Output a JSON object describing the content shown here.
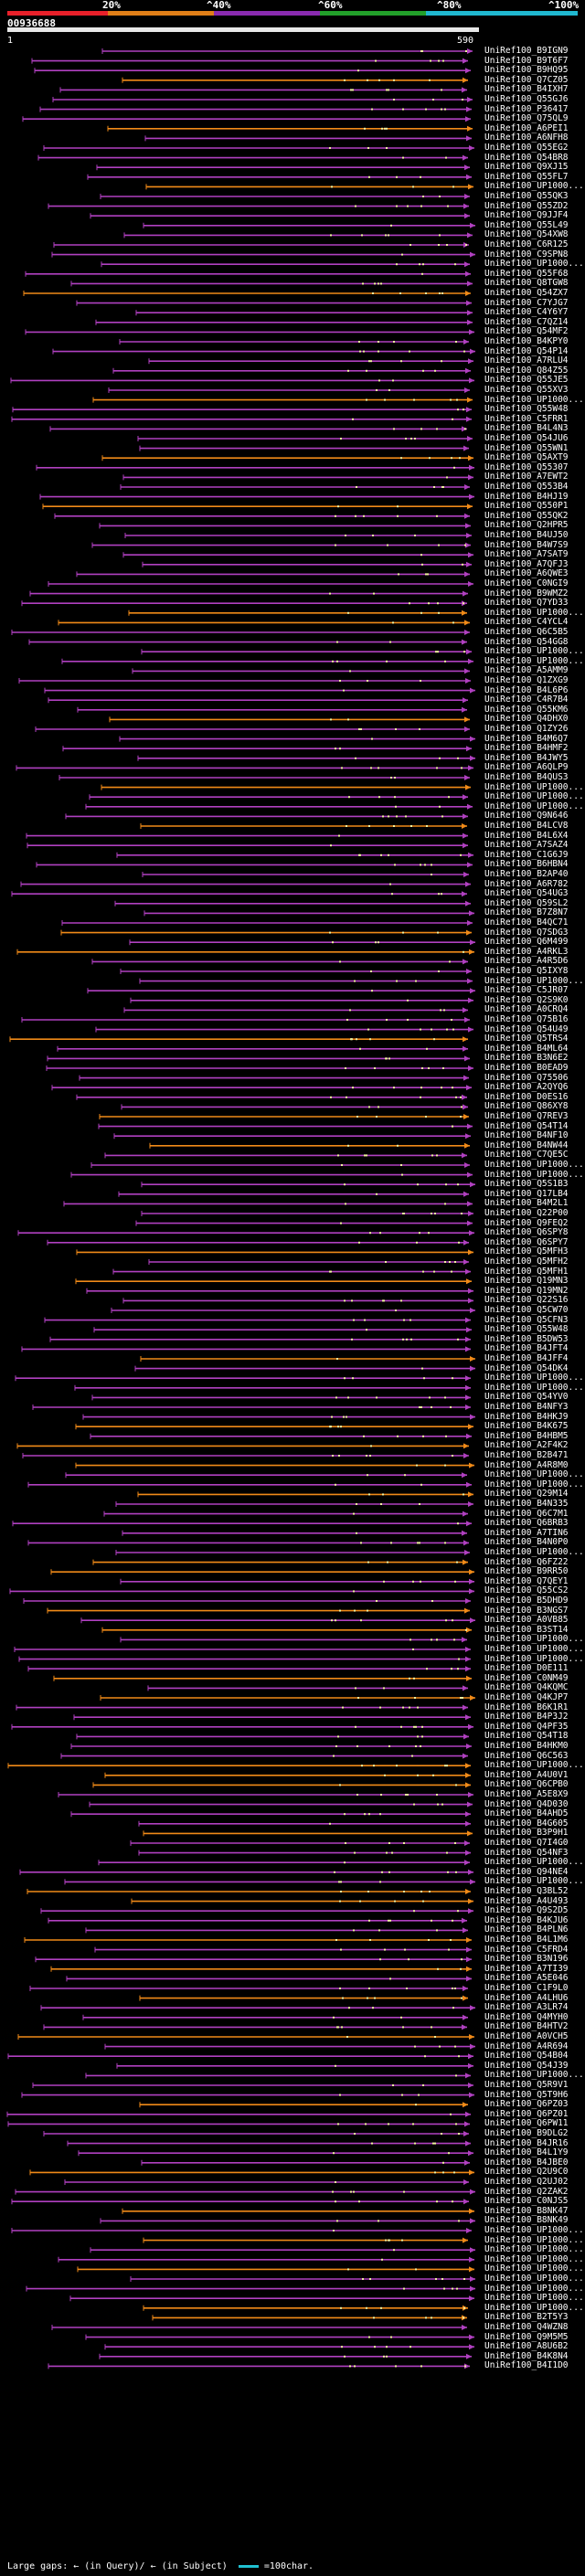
{
  "legend": {
    "labels": [
      "20%",
      "^40%",
      "^60%",
      "^80%",
      "^100%"
    ],
    "colors": [
      "#e8202a",
      "#e07f18",
      "#8a2bb0",
      "#22a02a",
      "#20b8d0"
    ]
  },
  "query": {
    "id": "00936688",
    "start": "1",
    "end": "590"
  },
  "hit_colors": {
    "purple": "#b040c0",
    "orange": "#f08a18",
    "dot": "#f0f0a0"
  },
  "hits": [
    "UniRef100_B9IGN9",
    "UniRef100_B9T6F7",
    "UniRef100_B9HQ95",
    "UniRef100_Q7CZ05",
    "UniRef100_B4IXH7",
    "UniRef100_Q55GJ6",
    "UniRef100_P36417",
    "UniRef100_Q75QL9",
    "UniRef100_A6PEI1",
    "UniRef100_A6NFH8",
    "UniRef100_Q55EG2",
    "UniRef100_Q54BR8",
    "UniRef100_Q9XJ15",
    "UniRef100_Q55FL7",
    "UniRef100_UP1000...",
    "UniRef100_Q55QK3",
    "UniRef100_Q55ZD2",
    "UniRef100_Q9JJF4",
    "UniRef100_Q55L49",
    "UniRef100_Q54XW8",
    "UniRef100_C6R125",
    "UniRef100_C9SPN8",
    "UniRef100_UP1000...",
    "UniRef100_Q55F68",
    "UniRef100_Q8TGW8",
    "UniRef100_Q54ZX7",
    "UniRef100_C7YJG7",
    "UniRef100_C4Y6Y7",
    "UniRef100_C7QZ14",
    "UniRef100_Q54MF2",
    "UniRef100_B4KPY0",
    "UniRef100_Q54P14",
    "UniRef100_A7RLU4",
    "UniRef100_Q84Z55",
    "UniRef100_Q55JE5",
    "UniRef100_Q55XV3",
    "UniRef100_UP1000...",
    "UniRef100_Q55W48",
    "UniRef100_C5FRR1",
    "UniRef100_B4L4N3",
    "UniRef100_Q54JU6",
    "UniRef100_Q55WN1",
    "UniRef100_Q5AXT9",
    "UniRef100_Q55307",
    "UniRef100_A7EWT2",
    "UniRef100_Q553B4",
    "UniRef100_B4HJ19",
    "UniRef100_Q550P1",
    "UniRef100_Q55QK2",
    "UniRef100_Q2HPR5",
    "UniRef100_B4UJ50",
    "UniRef100_B4W7S9",
    "UniRef100_A7SAT9",
    "UniRef100_A7QFJ3",
    "UniRef100_A6QWE3",
    "UniRef100_C0NGI9",
    "UniRef100_B9WMZ2",
    "UniRef100_Q7YD33",
    "UniRef100_UP1000...",
    "UniRef100_C4YCL4",
    "UniRef100_Q6C5B5",
    "UniRef100_Q54GG8",
    "UniRef100_UP1000...",
    "UniRef100_UP1000...",
    "UniRef100_A5AMM9",
    "UniRef100_Q1ZXG9",
    "UniRef100_B4L6P6",
    "UniRef100_C4R7B4",
    "UniRef100_Q55KM6",
    "UniRef100_Q4DHX0",
    "UniRef100_Q1ZY26",
    "UniRef100_B4M6Q7",
    "UniRef100_B4HMF2",
    "UniRef100_B4JWY5",
    "UniRef100_A6QLP9",
    "UniRef100_B4QUS3",
    "UniRef100_UP1000...",
    "UniRef100_UP1000...",
    "UniRef100_UP1000...",
    "UniRef100_Q9N646",
    "UniRef100_B4LCV8",
    "UniRef100_B4L6X4",
    "UniRef100_A7SAZ4",
    "UniRef100_C1G6J9",
    "UniRef100_B6HBN4",
    "UniRef100_B2AP40",
    "UniRef100_A6R782",
    "UniRef100_Q54UG3",
    "UniRef100_Q59SL2",
    "UniRef100_B7Z8N7",
    "UniRef100_B4QC71",
    "UniRef100_Q7SDG3",
    "UniRef100_Q6M499",
    "UniRef100_A4RKL3",
    "UniRef100_A4R5D6",
    "UniRef100_Q5IXY8",
    "UniRef100_UP1000...",
    "UniRef100_C5JR07",
    "UniRef100_Q2S9K0",
    "UniRef100_A0CRQ4",
    "UniRef100_Q75B16",
    "UniRef100_Q54U49",
    "UniRef100_Q5TRS4",
    "UniRef100_B4ML64",
    "UniRef100_B3N6E2",
    "UniRef100_B0EAD9",
    "UniRef100_Q75506",
    "UniRef100_A2QYQ6",
    "UniRef100_D0ES16",
    "UniRef100_Q86XY8",
    "UniRef100_Q7REV3",
    "UniRef100_Q54T14",
    "UniRef100_B4NF10",
    "UniRef100_B4NW44",
    "UniRef100_C7QE5C",
    "UniRef100_UP1000...",
    "UniRef100_UP1000...",
    "UniRef100_Q5S1B3",
    "UniRef100_Q17LB4",
    "UniRef100_B4M2L1",
    "UniRef100_Q22P00",
    "UniRef100_Q9FEQ2",
    "UniRef100_Q6SPY8",
    "UniRef100_Q6SPY7",
    "UniRef100_Q5MFH3",
    "UniRef100_Q5MFH2",
    "UniRef100_Q5MFH1",
    "UniRef100_Q19MN3",
    "UniRef100_Q19MN2",
    "UniRef100_Q22S16",
    "UniRef100_Q5CW70",
    "UniRef100_Q5CFN3",
    "UniRef100_Q55W48",
    "UniRef100_B5DW53",
    "UniRef100_B4JFT4",
    "UniRef100_B4JFF4",
    "UniRef100_Q54DK4",
    "UniRef100_UP1000...",
    "UniRef100_UP1000...",
    "UniRef100_Q54YV0",
    "UniRef100_B4NFY3",
    "UniRef100_B4HKJ9",
    "UniRef100_B4K675",
    "UniRef100_B4HBM5",
    "UniRef100_A2F4K2",
    "UniRef100_B2B471",
    "UniRef100_A4R8M0",
    "UniRef100_UP1000...",
    "UniRef100_UP1000...",
    "UniRef100_Q29M14",
    "UniRef100_B4N335",
    "UniRef100_Q6C7M1",
    "UniRef100_Q6BRB3",
    "UniRef100_A7TIN6",
    "UniRef100_B4N0P0",
    "UniRef100_UP1000...",
    "UniRef100_Q6FZ22",
    "UniRef100_B9RR50",
    "UniRef100_Q7QEY1",
    "UniRef100_Q55CS2",
    "UniRef100_B5DHD9",
    "UniRef100_B3NGS7",
    "UniRef100_A0VB85",
    "UniRef100_B3ST14",
    "UniRef100_UP1000...",
    "UniRef100_UP1000...",
    "UniRef100_UP1000...",
    "UniRef100_D0E111",
    "UniRef100_C0NM49",
    "UniRef100_Q4KQMC",
    "UniRef100_Q4KJP7",
    "UniRef100_B6K1R1",
    "UniRef100_B4P3J2",
    "UniRef100_Q4PF35",
    "UniRef100_Q54T18",
    "UniRef100_B4HKM0",
    "UniRef100_Q6C563",
    "UniRef100_UP1000...",
    "UniRef100_A4U0V1",
    "UniRef100_Q6CPB0",
    "UniRef100_A5E8X9",
    "UniRef100_Q4D030",
    "UniRef100_B4AHD5",
    "UniRef100_B4G605",
    "UniRef100_B3P9H1",
    "UniRef100_Q7I4G0",
    "UniRef100_Q54NF3",
    "UniRef100_UP1000...",
    "UniRef100_Q94NE4",
    "UniRef100_UP1000...",
    "UniRef100_Q3BL52",
    "UniRef100_A4U493",
    "UniRef100_Q9S2D5",
    "UniRef100_B4KJU6",
    "UniRef100_B4PLN6",
    "UniRef100_B4L1M6",
    "UniRef100_C5FRD4",
    "UniRef100_B3N196",
    "UniRef100_A7TI39",
    "UniRef100_A5E046",
    "UniRef100_C1F9L0",
    "UniRef100_A4LHU6",
    "UniRef100_A3LR74",
    "UniRef100_Q4MYH0",
    "UniRef100_B4HTV2",
    "UniRef100_A0VCH5",
    "UniRef100_A4R694",
    "UniRef100_Q54B04",
    "UniRef100_Q54J39",
    "UniRef100_UP1000...",
    "UniRef100_Q5R9V1",
    "UniRef100_Q5T9H6",
    "UniRef100_Q6PZ03",
    "UniRef100_Q6PZ01",
    "UniRef100_Q6PW11",
    "UniRef100_B9DLG2",
    "UniRef100_B4JR16",
    "UniRef100_B4L1Y9",
    "UniRef100_B4JBE0",
    "UniRef100_Q2U9C0",
    "UniRef100_Q2UJ02",
    "UniRef100_Q2ZAK2",
    "UniRef100_C0NJS5",
    "UniRef100_B8NK47",
    "UniRef100_B8NK49",
    "UniRef100_UP1000...",
    "UniRef100_UP1000...",
    "UniRef100_UP1000...",
    "UniRef100_UP1000...",
    "UniRef100_UP1000...",
    "UniRef100_UP1000...",
    "UniRef100_UP1000...",
    "UniRef100_UP1000...",
    "UniRef100_UP1000...",
    "UniRef100_B2T5Y3",
    "UniRef100_Q4WZN8",
    "UniRef100_Q9M5M5",
    "UniRef100_A8U6B2",
    "UniRef100_B4K8N4",
    "UniRef100_B4I1D0"
  ],
  "footer": {
    "text": "Large gaps: ← (in Query)/ ← (in Subject)",
    "scale": "=100char."
  }
}
